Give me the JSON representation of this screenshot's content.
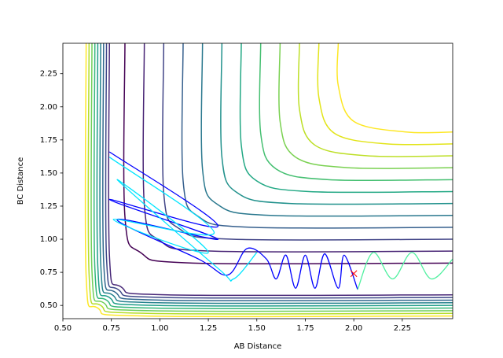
{
  "chart_data": {
    "type": "contour",
    "xlabel": "AB Distance",
    "ylabel": "BC Distance",
    "xlim": [
      0.5,
      2.51
    ],
    "ylim": [
      0.4,
      2.48
    ],
    "xticks": [
      {
        "value": 0.5,
        "label": "0.50"
      },
      {
        "value": 0.75,
        "label": "0.75"
      },
      {
        "value": 1.0,
        "label": "1.00"
      },
      {
        "value": 1.25,
        "label": "1.25"
      },
      {
        "value": 1.5,
        "label": "1.50"
      },
      {
        "value": 1.75,
        "label": "1.75"
      },
      {
        "value": 2.0,
        "label": "2.00"
      },
      {
        "value": 2.25,
        "label": "2.25"
      }
    ],
    "yticks": [
      {
        "value": 0.5,
        "label": "0.50"
      },
      {
        "value": 0.75,
        "label": "0.75"
      },
      {
        "value": 1.0,
        "label": "1.00"
      },
      {
        "value": 1.25,
        "label": "1.25"
      },
      {
        "value": 1.5,
        "label": "1.50"
      },
      {
        "value": 1.75,
        "label": "1.75"
      },
      {
        "value": 2.0,
        "label": "2.00"
      },
      {
        "value": 2.25,
        "label": "2.25"
      }
    ],
    "contours": [
      {
        "color": "#fde725",
        "x": [
          0.62,
          0.62,
          0.68,
          0.92,
          2.51
        ],
        "y": [
          2.48,
          0.72,
          0.48,
          0.42,
          0.42
        ]
      },
      {
        "color": "#b5de2b",
        "x": [
          0.635,
          0.635,
          0.695,
          0.935,
          2.51
        ],
        "y": [
          2.48,
          0.74,
          0.5,
          0.44,
          0.44
        ]
      },
      {
        "color": "#6ece58",
        "x": [
          0.65,
          0.65,
          0.71,
          0.95,
          2.51
        ],
        "y": [
          2.48,
          0.76,
          0.52,
          0.46,
          0.46
        ]
      },
      {
        "color": "#35b779",
        "x": [
          0.665,
          0.665,
          0.725,
          0.965,
          2.51
        ],
        "y": [
          2.48,
          0.78,
          0.54,
          0.48,
          0.48
        ]
      },
      {
        "color": "#1f9e89",
        "x": [
          0.68,
          0.68,
          0.74,
          0.98,
          2.51
        ],
        "y": [
          2.48,
          0.8,
          0.56,
          0.5,
          0.5
        ]
      },
      {
        "color": "#26828e",
        "x": [
          0.695,
          0.695,
          0.755,
          0.995,
          2.51
        ],
        "y": [
          2.48,
          0.82,
          0.58,
          0.52,
          0.52
        ]
      },
      {
        "color": "#31688e",
        "x": [
          0.71,
          0.71,
          0.77,
          1.01,
          2.51
        ],
        "y": [
          2.48,
          0.84,
          0.6,
          0.54,
          0.54
        ]
      },
      {
        "color": "#3e4989",
        "x": [
          0.725,
          0.725,
          0.785,
          1.025,
          2.51
        ],
        "y": [
          2.48,
          0.86,
          0.62,
          0.56,
          0.56
        ]
      },
      {
        "color": "#482878",
        "x": [
          0.74,
          0.74,
          0.8,
          1.04,
          2.51
        ],
        "y": [
          2.48,
          0.88,
          0.64,
          0.58,
          0.58
        ]
      },
      {
        "color": "#440154",
        "x": [
          0.82,
          0.82,
          0.9,
          1.17,
          2.51
        ],
        "y": [
          2.48,
          1.17,
          0.9,
          0.82,
          0.82
        ]
      },
      {
        "color": "#482475",
        "x": [
          0.92,
          0.92,
          1.0,
          1.27,
          2.51
        ],
        "y": [
          2.48,
          1.26,
          0.99,
          0.91,
          0.91
        ]
      },
      {
        "color": "#414487",
        "x": [
          1.02,
          1.02,
          1.1,
          1.37,
          2.51
        ],
        "y": [
          2.48,
          1.35,
          1.08,
          1.0,
          1.0
        ]
      },
      {
        "color": "#355f8d",
        "x": [
          1.12,
          1.12,
          1.2,
          1.47,
          2.51
        ],
        "y": [
          2.48,
          1.44,
          1.17,
          1.09,
          1.09
        ]
      },
      {
        "color": "#2a788e",
        "x": [
          1.22,
          1.22,
          1.3,
          1.57,
          2.51
        ],
        "y": [
          2.48,
          1.53,
          1.26,
          1.18,
          1.18
        ]
      },
      {
        "color": "#21918c",
        "x": [
          1.32,
          1.32,
          1.4,
          1.67,
          2.51
        ],
        "y": [
          2.48,
          1.62,
          1.35,
          1.27,
          1.27
        ]
      },
      {
        "color": "#22a884",
        "x": [
          1.42,
          1.42,
          1.5,
          1.77,
          2.51
        ],
        "y": [
          2.48,
          1.71,
          1.44,
          1.36,
          1.36
        ]
      },
      {
        "color": "#44bf70",
        "x": [
          1.52,
          1.52,
          1.6,
          1.87,
          2.51
        ],
        "y": [
          2.48,
          1.8,
          1.53,
          1.45,
          1.45
        ]
      },
      {
        "color": "#7ad151",
        "x": [
          1.62,
          1.62,
          1.7,
          1.97,
          2.51
        ],
        "y": [
          2.48,
          1.89,
          1.62,
          1.54,
          1.54
        ]
      },
      {
        "color": "#bddf26",
        "x": [
          1.72,
          1.72,
          1.8,
          2.07,
          2.51
        ],
        "y": [
          2.48,
          1.98,
          1.71,
          1.63,
          1.63
        ]
      },
      {
        "color": "#e2e418",
        "x": [
          1.82,
          1.82,
          1.9,
          2.17,
          2.51
        ],
        "y": [
          2.48,
          2.07,
          1.8,
          1.72,
          1.72
        ]
      },
      {
        "color": "#fde725",
        "x": [
          1.92,
          1.92,
          2.0,
          2.27,
          2.51
        ],
        "y": [
          2.48,
          2.16,
          1.89,
          1.81,
          1.81
        ]
      }
    ],
    "series": [
      {
        "color": "#0000ff",
        "x": [
          0.74,
          1.3,
          0.74,
          1.3,
          0.78,
          1.2,
          1.35,
          1.45,
          1.55,
          1.6,
          1.65,
          1.7,
          1.75,
          1.8,
          1.85,
          1.92,
          1.95,
          2.02
        ],
        "y": [
          1.66,
          1.1,
          1.3,
          1.0,
          1.15,
          0.85,
          0.73,
          0.93,
          0.85,
          0.7,
          0.88,
          0.63,
          0.88,
          0.63,
          0.89,
          0.63,
          0.88,
          0.62
        ]
      },
      {
        "color": "#00e5ff",
        "x": [
          0.74,
          1.28,
          0.76,
          1.25,
          0.78,
          1.3,
          1.38,
          1.5
        ],
        "y": [
          1.62,
          1.05,
          1.15,
          0.9,
          1.45,
          0.78,
          0.7,
          0.9
        ]
      },
      {
        "color": "#50f0a0",
        "x": [
          2.02,
          2.1,
          2.2,
          2.3,
          2.4,
          2.51
        ],
        "y": [
          0.62,
          0.9,
          0.7,
          0.9,
          0.7,
          0.85
        ]
      }
    ],
    "markers": [
      {
        "color": "#ff0000",
        "x": 2.0,
        "y": 0.74
      }
    ]
  }
}
